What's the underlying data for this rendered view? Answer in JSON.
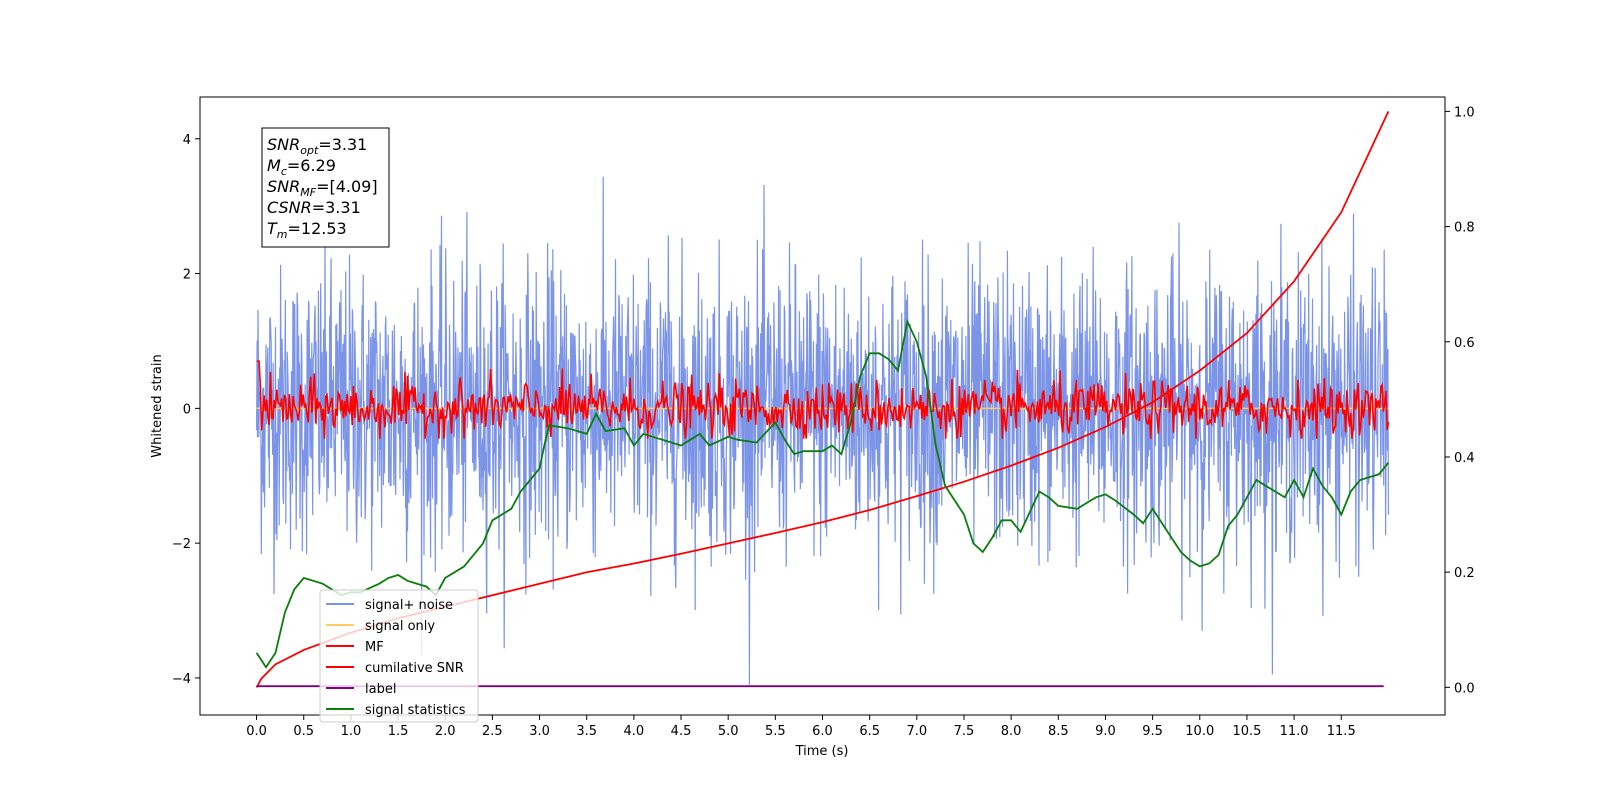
{
  "chart_data": {
    "type": "line",
    "xlabel": "Time (s)",
    "ylabel": "Whitened strain",
    "xlim": [
      -0.6,
      12.6
    ],
    "ylim": [
      -4.55,
      4.62
    ],
    "y2lim": [
      -0.048,
      1.025
    ],
    "x_ticks": [
      0.0,
      0.5,
      1.0,
      1.5,
      2.0,
      2.5,
      3.0,
      3.5,
      4.0,
      4.5,
      5.0,
      5.5,
      6.0,
      6.5,
      7.0,
      7.5,
      8.0,
      8.5,
      9.0,
      9.5,
      10.0,
      10.5,
      11.0,
      11.5
    ],
    "x_tick_labels": [
      "0.0",
      "0.5",
      "1.0",
      "1.5",
      "2.0",
      "2.5",
      "3.0",
      "3.5",
      "4.0",
      "4.5",
      "5.0",
      "5.5",
      "6.0",
      "6.5",
      "7.0",
      "7.5",
      "8.0",
      "8.5",
      "9.0",
      "9.5",
      "10.0",
      "10.5",
      "11.0",
      "11.5"
    ],
    "y_ticks": [
      -4,
      -2,
      0,
      2,
      4
    ],
    "y_tick_labels": [
      "−4",
      "−2",
      "0",
      "2",
      "4"
    ],
    "y2_ticks": [
      0.0,
      0.2,
      0.4,
      0.6,
      0.8,
      1.0
    ],
    "y2_tick_labels": [
      "0.0",
      "0.2",
      "0.4",
      "0.6",
      "0.8",
      "1.0"
    ],
    "grid": false,
    "legend_position": "bottom-left",
    "stats_box": [
      {
        "base": "SNR",
        "sub": "opt",
        "value": "=3.31"
      },
      {
        "base": "M",
        "sub": "c",
        "value": "=6.29"
      },
      {
        "base": "SNR",
        "sub": "MF",
        "value": "=[4.09]"
      },
      {
        "base": "CSNR",
        "sub": "",
        "value": "=3.31"
      },
      {
        "base": "T",
        "sub": "m",
        "value": "=12.53"
      }
    ],
    "series": [
      {
        "name": "signal+ noise",
        "color": "#7b94e8",
        "axis": "left",
        "description_points": {
          "x": [
            0.0,
            12.0
          ],
          "amplitude_range": [
            -4.1,
            4.15
          ]
        }
      },
      {
        "name": "signal only",
        "color": "#ffc966",
        "axis": "left",
        "x": [
          0.0,
          12.0
        ],
        "y": [
          0.0,
          0.0
        ]
      },
      {
        "name": "MF",
        "color": "#ff0000",
        "axis": "left",
        "amplitude_range": [
          -0.45,
          1.0
        ]
      },
      {
        "name": "cumilative SNR",
        "color": "#ff0000",
        "axis": "right",
        "x": [
          0.0,
          0.05,
          0.2,
          0.5,
          1.0,
          1.5,
          2.0,
          2.5,
          3.0,
          3.5,
          4.0,
          4.5,
          5.0,
          5.5,
          6.0,
          6.5,
          7.0,
          7.5,
          8.0,
          8.5,
          9.0,
          9.5,
          10.0,
          10.5,
          11.0,
          11.5,
          12.0
        ],
        "y": [
          0.0,
          0.015,
          0.04,
          0.065,
          0.095,
          0.12,
          0.14,
          0.16,
          0.18,
          0.2,
          0.215,
          0.232,
          0.25,
          0.268,
          0.287,
          0.308,
          0.332,
          0.357,
          0.385,
          0.416,
          0.452,
          0.495,
          0.55,
          0.615,
          0.705,
          0.825,
          1.0
        ]
      },
      {
        "name": "label",
        "color": "#800080",
        "axis": "right",
        "x": [
          0.0,
          11.95
        ],
        "y": [
          0.002,
          0.002
        ]
      },
      {
        "name": "signal statistics",
        "color": "#0b7d0b",
        "axis": "right",
        "x": [
          0.0,
          0.1,
          0.2,
          0.3,
          0.4,
          0.5,
          0.7,
          0.9,
          1.0,
          1.1,
          1.3,
          1.4,
          1.5,
          1.6,
          1.8,
          1.9,
          2.0,
          2.1,
          2.2,
          2.4,
          2.5,
          2.6,
          2.7,
          2.8,
          2.9,
          3.0,
          3.05,
          3.1,
          3.3,
          3.5,
          3.6,
          3.7,
          3.9,
          4.0,
          4.1,
          4.2,
          4.3,
          4.5,
          4.6,
          4.7,
          4.8,
          5.0,
          5.1,
          5.3,
          5.5,
          5.6,
          5.7,
          5.8,
          6.0,
          6.1,
          6.2,
          6.3,
          6.4,
          6.5,
          6.6,
          6.7,
          6.8,
          6.9,
          7.0,
          7.1,
          7.2,
          7.3,
          7.5,
          7.6,
          7.7,
          7.8,
          7.9,
          8.0,
          8.1,
          8.3,
          8.4,
          8.5,
          8.7,
          8.8,
          8.9,
          9.0,
          9.1,
          9.3,
          9.4,
          9.5,
          9.6,
          9.8,
          9.9,
          10.0,
          10.1,
          10.2,
          10.3,
          10.4,
          10.6,
          10.7,
          10.8,
          10.9,
          11.0,
          11.1,
          11.2,
          11.3,
          11.4,
          11.5,
          11.6,
          11.7,
          11.8,
          11.9,
          12.0
        ],
        "y": [
          0.06,
          0.035,
          0.06,
          0.13,
          0.17,
          0.19,
          0.18,
          0.16,
          0.165,
          0.165,
          0.18,
          0.19,
          0.195,
          0.185,
          0.175,
          0.16,
          0.19,
          0.2,
          0.21,
          0.25,
          0.29,
          0.3,
          0.31,
          0.34,
          0.36,
          0.38,
          0.42,
          0.455,
          0.45,
          0.44,
          0.475,
          0.445,
          0.45,
          0.42,
          0.44,
          0.435,
          0.43,
          0.42,
          0.43,
          0.44,
          0.42,
          0.435,
          0.43,
          0.425,
          0.46,
          0.43,
          0.405,
          0.41,
          0.41,
          0.42,
          0.405,
          0.46,
          0.54,
          0.58,
          0.58,
          0.57,
          0.55,
          0.635,
          0.6,
          0.54,
          0.42,
          0.35,
          0.3,
          0.25,
          0.235,
          0.26,
          0.29,
          0.29,
          0.27,
          0.34,
          0.33,
          0.315,
          0.31,
          0.32,
          0.33,
          0.335,
          0.325,
          0.3,
          0.285,
          0.31,
          0.285,
          0.235,
          0.22,
          0.21,
          0.215,
          0.23,
          0.28,
          0.3,
          0.36,
          0.35,
          0.34,
          0.33,
          0.36,
          0.33,
          0.38,
          0.35,
          0.33,
          0.3,
          0.34,
          0.36,
          0.365,
          0.37,
          0.39
        ]
      }
    ]
  },
  "legend": {
    "items": [
      {
        "label": "signal+ noise",
        "color": "#7b94e8"
      },
      {
        "label": "signal only",
        "color": "#ffc966"
      },
      {
        "label": "MF",
        "color": "#ff0000"
      },
      {
        "label": "cumilative SNR",
        "color": "#ff0000"
      },
      {
        "label": "label",
        "color": "#800080"
      },
      {
        "label": "signal statistics",
        "color": "#0b7d0b"
      }
    ]
  }
}
